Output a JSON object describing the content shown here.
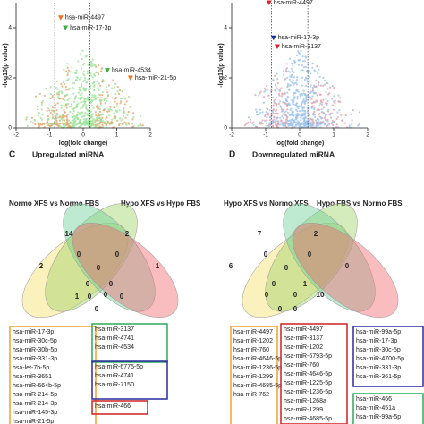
{
  "chart_data": [
    {
      "type": "scatter",
      "xlabel": "log(fold change)",
      "ylabel": "-log10(p value)",
      "xlim": [
        -2,
        2
      ],
      "xticks": [
        -2,
        -1,
        0,
        1,
        2
      ],
      "ylim": [
        0,
        5
      ],
      "yticks": [
        0,
        2,
        4
      ],
      "vlines": [
        -0.85,
        0.2
      ],
      "points": [
        {
          "label": "hsa-miR-4497",
          "x": -0.67,
          "y": 4.4,
          "color": "#e87722"
        },
        {
          "label": "hsa-miR-17-3p",
          "x": -0.53,
          "y": 4.0,
          "color": "#3cb043"
        },
        {
          "label": "hsa-miR-4534",
          "x": 0.72,
          "y": 2.3,
          "color": "#3cb043"
        },
        {
          "label": "hsa-miR-21-5p",
          "x": 1.41,
          "y": 2.0,
          "color": "#e87722"
        }
      ]
    },
    {
      "type": "scatter",
      "xlabel": "log(fold change)",
      "ylabel": "-log10(p value)",
      "xlim": [
        -2,
        2
      ],
      "xticks": [
        -2,
        -1,
        0,
        1,
        2
      ],
      "ylim": [
        0,
        5
      ],
      "yticks": [
        0,
        2,
        4
      ],
      "vlines": [
        -0.83,
        0.24
      ],
      "points": [
        {
          "label": "hsa-miR-4497",
          "x": -0.9,
          "y": 5.0,
          "color": "#e0202a"
        },
        {
          "label": "hsa-miR-17-3p",
          "x": -0.77,
          "y": 3.6,
          "color": "#1a2fa0"
        },
        {
          "label": "hsa-miR-3137",
          "x": -0.66,
          "y": 3.25,
          "color": "#e0202a"
        }
      ]
    }
  ],
  "venns": [
    {
      "letter": "C",
      "title": "Upregulated miRNA",
      "sets": [
        {
          "label": "Normo XFS vs Normo FBS",
          "color": "#f0a030"
        },
        {
          "label": "Hypo XFS vs Hypo FBS",
          "color": "#2eaa5a"
        }
      ],
      "counts": [
        14,
        2,
        2,
        1,
        0,
        0,
        0,
        0,
        0,
        1,
        0,
        0,
        0,
        0
      ],
      "lists": [
        {
          "color": "#f0a030",
          "items": [
            "hsa-miR-17-3p",
            "hsa-miR-30c-5p",
            "hsa-miR-30b-5p",
            "hsa-miR-331-3p",
            "hsa-let-7b-5p",
            "hsa-miR-3651",
            "hsa-miR-664b-5p",
            "hsa-miR-214-5p",
            "hsa-miR-214-3p",
            "hsa-miR-145-3p",
            "hsa-miR-21-5p"
          ]
        },
        {
          "color": "#2eaa5a",
          "items": [
            "hsa-miR-3137",
            "hsa-miR-4741",
            "hsa-miR-4534"
          ]
        },
        {
          "color": "#2a2aa0",
          "items": [
            "hsa-miR-6775-5p",
            "hsa-miR-4741",
            "hsa-miR-7150"
          ]
        },
        {
          "color": "#d02020",
          "items": [
            "hsa-miR-466"
          ]
        }
      ]
    },
    {
      "letter": "D",
      "title": "Downregulated miRNA",
      "sets": [
        {
          "label": "Hypo XFS vs Normo XFS",
          "color": "#2a2aa0"
        },
        {
          "label": "Hypo FBS vs Normo FBS",
          "color": "#d02020"
        }
      ],
      "counts": [
        7,
        2,
        6,
        0,
        0,
        0,
        0,
        0,
        1,
        10,
        0,
        0,
        0,
        0
      ],
      "lists": [
        {
          "color": "#f0a030",
          "items": [
            "hsa-miR-4497",
            "hsa-miR-1202",
            "hsa-miR-760",
            "hsa-miR-4646-5p",
            "hsa-miR-1236-5p",
            "hsa-miR-1299",
            "hsa-miR-4685-5p",
            "hsa-miR-762"
          ]
        },
        {
          "color": "#d02020",
          "items": [
            "hsa-miR-4497",
            "hsa-miR-3137",
            "hsa-miR-1202",
            "hsa-miR-6793-5p",
            "hsa-miR-760",
            "hsa-miR-4646-5p",
            "hsa-miR-1225-5p",
            "hsa-miR-1236-5p",
            "hsa-miR-1268a",
            "hsa-miR-1299",
            "hsa-miR-4685-5p"
          ]
        },
        {
          "color": "#2a2aa0",
          "items": [
            "hsa-miR-99a-5p",
            "hsa-miR-17-3p",
            "hsa-miR-30c-5p",
            "hsa-miR-4700-5p",
            "hsa-miR-331-3p",
            "hsa-miR-361-5p"
          ]
        },
        {
          "color": "#2eaa5a",
          "items": [
            "hsa-miR-466",
            "hsa-miR-451a",
            "hsa-miR-99a-5p"
          ]
        }
      ]
    }
  ]
}
